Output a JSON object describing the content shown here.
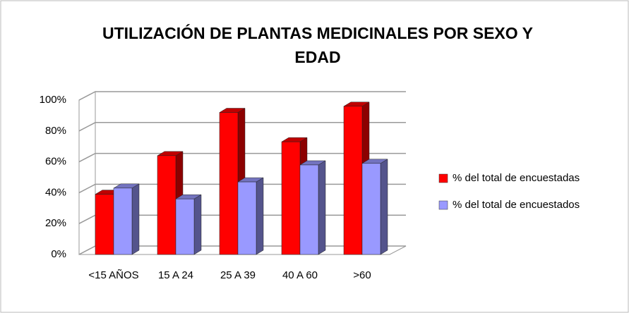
{
  "chart_data": {
    "type": "bar3d",
    "title": "UTILIZACIÓN DE PLANTAS MEDICINALES POR SEXO Y EDAD",
    "categories": [
      "<15 AÑOS",
      "15 A 24",
      "25 A 39",
      "40 A 60",
      ">60"
    ],
    "series": [
      {
        "name": "% del total de encuestadas",
        "color": "#ff0000",
        "values": [
          39,
          64,
          92,
          73,
          96
        ]
      },
      {
        "name": "% del total de encuestados",
        "color": "#9999ff",
        "values": [
          43,
          36,
          47,
          58,
          59
        ]
      }
    ],
    "ylim": [
      0,
      100
    ],
    "yticks": [
      {
        "value": 0,
        "label": "0%"
      },
      {
        "value": 20,
        "label": "20%"
      },
      {
        "value": 40,
        "label": "40%"
      },
      {
        "value": 60,
        "label": "60%"
      },
      {
        "value": 80,
        "label": "80%"
      },
      {
        "value": 100,
        "label": "100%"
      }
    ],
    "grid": true,
    "legend": "right"
  }
}
